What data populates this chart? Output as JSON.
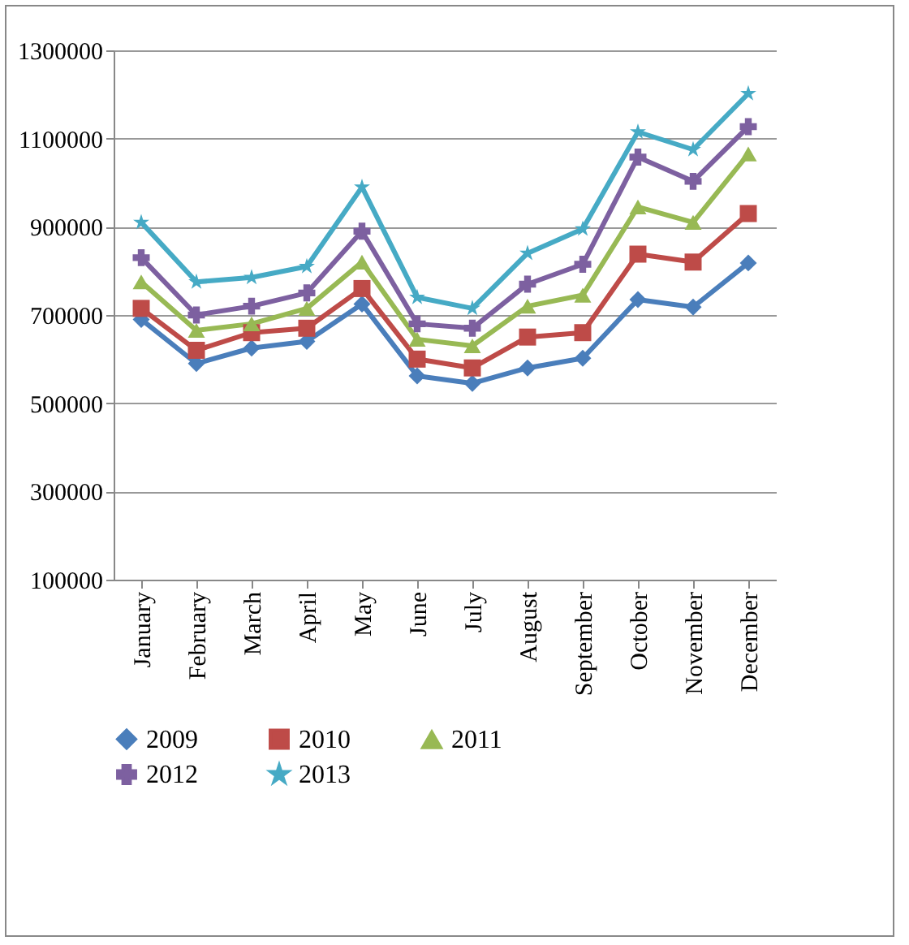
{
  "chart_data": {
    "type": "line",
    "categories": [
      "January",
      "February",
      "March",
      "April",
      "May",
      "June",
      "July",
      "August",
      "September",
      "October",
      "November",
      "December"
    ],
    "series": [
      {
        "name": "2009",
        "color": "#4a7ebb",
        "marker": "diamond",
        "values": [
          690000,
          590000,
          625000,
          640000,
          725000,
          562000,
          545000,
          580000,
          602000,
          735000,
          718000,
          818000
        ]
      },
      {
        "name": "2010",
        "color": "#be4b48",
        "marker": "square",
        "values": [
          715000,
          620000,
          660000,
          670000,
          760000,
          600000,
          580000,
          650000,
          660000,
          838000,
          820000,
          930000
        ]
      },
      {
        "name": "2011",
        "color": "#98b954",
        "marker": "triangle",
        "values": [
          775000,
          665000,
          680000,
          715000,
          820000,
          645000,
          630000,
          720000,
          745000,
          945000,
          910000,
          1065000
        ]
      },
      {
        "name": "2012",
        "color": "#7d60a0",
        "marker": "cross",
        "values": [
          830000,
          700000,
          720000,
          750000,
          890000,
          680000,
          670000,
          770000,
          815000,
          1058000,
          1003000,
          1127000
        ]
      },
      {
        "name": "2013",
        "color": "#46aac5",
        "marker": "star",
        "values": [
          910000,
          775000,
          785000,
          810000,
          990000,
          740000,
          715000,
          840000,
          895000,
          1115000,
          1075000,
          1202000
        ]
      }
    ],
    "ylim": [
      100000,
      1300000
    ],
    "yticks": [
      100000,
      300000,
      500000,
      700000,
      900000,
      1100000,
      1300000
    ],
    "grid": "y",
    "legend": "bottom"
  }
}
